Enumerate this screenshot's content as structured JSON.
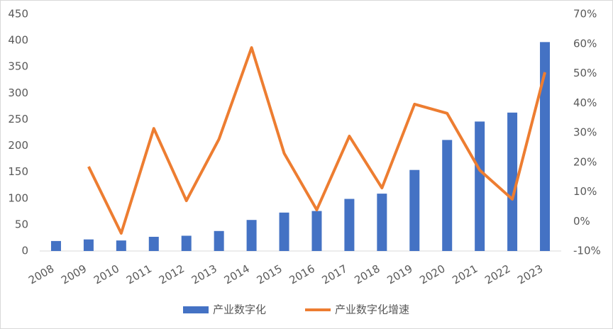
{
  "chart_data": {
    "type": "bar-line",
    "categories": [
      "2008",
      "2009",
      "2010",
      "2011",
      "2012",
      "2013",
      "2014",
      "2015",
      "2016",
      "2017",
      "2018",
      "2019",
      "2020",
      "2021",
      "2022",
      "2023"
    ],
    "series": [
      {
        "name": "产业数字化",
        "type": "bar",
        "color": "#4472c4",
        "values": [
          19,
          22,
          20,
          27,
          29,
          38,
          59,
          73,
          76,
          99,
          109,
          154,
          211,
          246,
          263,
          397
        ]
      },
      {
        "name": "产业数字化增速",
        "type": "line",
        "axis": "y2",
        "color": "#ed7d31",
        "values": [
          null,
          18.5,
          -4,
          31.4,
          7,
          27.8,
          58.7,
          23,
          3.9,
          28.8,
          11.3,
          39.6,
          36.5,
          17.3,
          7.5,
          50.4
        ]
      }
    ],
    "ylim": [
      0,
      450
    ],
    "yticks": [
      0,
      50,
      100,
      150,
      200,
      250,
      300,
      350,
      400,
      450
    ],
    "y2lim": [
      -10,
      70
    ],
    "y2ticks": [
      {
        "value": -10,
        "label": "-10%"
      },
      {
        "value": 0,
        "label": "0%"
      },
      {
        "value": 10,
        "label": "10%"
      },
      {
        "value": 20,
        "label": "20%"
      },
      {
        "value": 30,
        "label": "30%"
      },
      {
        "value": 40,
        "label": "40%"
      },
      {
        "value": 50,
        "label": "50%"
      },
      {
        "value": 60,
        "label": "60%"
      },
      {
        "value": 70,
        "label": "70%"
      }
    ],
    "legend": "bottom"
  }
}
